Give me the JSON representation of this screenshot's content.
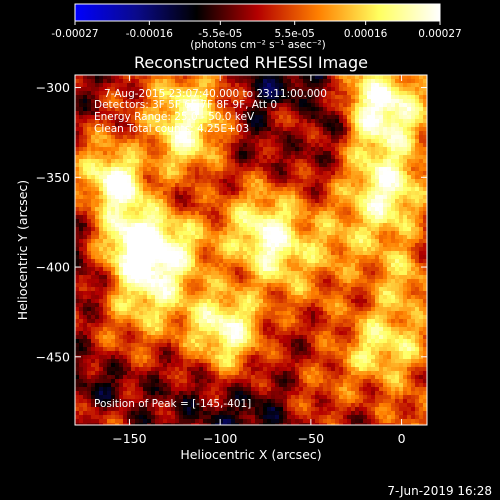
{
  "colorbar": {
    "tick_labels": [
      "-0.00027",
      "-0.00016",
      "-5.5e-05",
      "5.5e-05",
      "0.00016",
      "0.00027"
    ],
    "tick_values": [
      -0.00027,
      -0.00016,
      -5.5e-05,
      5.5e-05,
      0.00016,
      0.00027
    ],
    "range": [
      -0.00027,
      0.00027
    ],
    "units_label": "(photons cm⁻² s⁻¹ asec⁻²)",
    "colormap": [
      "#0000ff",
      "#0a0a8c",
      "#000000",
      "#b40000",
      "#ff8000",
      "#ffff60",
      "#ffffff"
    ]
  },
  "chart_data": {
    "type": "heatmap",
    "title": "Reconstructed RHESSI Image",
    "xlabel": "Heliocentric X (arcsec)",
    "ylabel": "Heliocentric Y (arcsec)",
    "xlim": [
      -180,
      14
    ],
    "ylim": [
      -488,
      -293
    ],
    "xticks": [
      -150,
      -100,
      -50,
      0
    ],
    "xtick_labels": [
      "−150",
      "−100",
      "−50",
      "0"
    ],
    "yticks": [
      -300,
      -350,
      -400,
      -450
    ],
    "ytick_labels": [
      "−300",
      "−350",
      "−400",
      "−450"
    ],
    "peak": [
      -145,
      -401
    ],
    "annotations": {
      "time": "7-Aug-2015 23:07:40.000 to 23:11:00.000",
      "detectors": "Detectors: 3F 5F 6F 7F 8F 9F, Att 0",
      "energy": "Energy Range: 25.0 - 50.0 keV",
      "method": "Clean     Total counts: 4.25E+03",
      "peak_label": "Position of Peak = [-145,-401]"
    }
  },
  "footer": {
    "date": "7-Jun-2019 16:28"
  }
}
